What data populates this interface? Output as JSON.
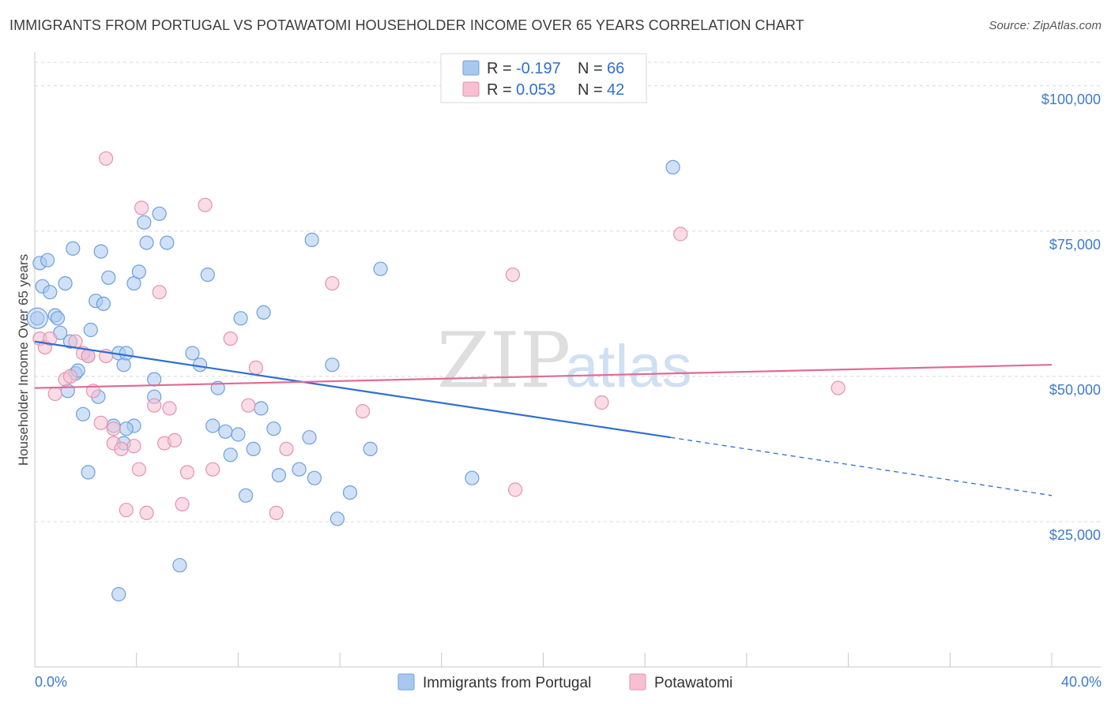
{
  "header": {
    "title": "IMMIGRANTS FROM PORTUGAL VS POTAWATOMI HOUSEHOLDER INCOME OVER 65 YEARS CORRELATION CHART",
    "source": "Source: ZipAtlas.com"
  },
  "watermark": {
    "zip": "ZIP",
    "atlas": "atlas"
  },
  "legend_top": [
    {
      "r_label": "R =",
      "r_value": "-0.197",
      "n_label": "N =",
      "n_value": "66"
    },
    {
      "r_label": "R =",
      "r_value": "0.053",
      "n_label": "N =",
      "n_value": "42"
    }
  ],
  "chart_data": {
    "type": "scatter",
    "title": "IMMIGRANTS FROM PORTUGAL VS POTAWATOMI HOUSEHOLDER INCOME OVER 65 YEARS CORRELATION CHART",
    "xlabel": "",
    "ylabel": "Householder Income Over 65 years",
    "xlim": [
      0,
      40
    ],
    "ylim": [
      0,
      105000
    ],
    "x_tick_labels": [
      "0.0%",
      "40.0%"
    ],
    "y_ticks": [
      25000,
      50000,
      75000,
      100000
    ],
    "y_tick_labels": [
      "$25,000",
      "$50,000",
      "$75,000",
      "$100,000"
    ],
    "grid": true,
    "legend_position": "top-center",
    "colors": {
      "blue_fill": "#a9c8f0",
      "blue_stroke": "#6d9fdc",
      "blue_line": "#2f6fd0",
      "pink_fill": "#f6c0d2",
      "pink_stroke": "#e692b0",
      "pink_line": "#e06b95"
    },
    "series": [
      {
        "name": "Immigrants from Portugal",
        "color": "#a9c8f0",
        "trend": {
          "x0": 0,
          "y0": 56000,
          "x1": 25,
          "y1": 39500,
          "x_dash_end": 40,
          "y_dash_end": 29500
        },
        "points": [
          [
            0.1,
            60000
          ],
          [
            0.2,
            69500
          ],
          [
            0.3,
            65500
          ],
          [
            0.5,
            70000
          ],
          [
            0.6,
            64500
          ],
          [
            0.8,
            60500
          ],
          [
            0.9,
            60000
          ],
          [
            1.0,
            57500
          ],
          [
            1.2,
            66000
          ],
          [
            1.3,
            47500
          ],
          [
            1.5,
            72000
          ],
          [
            1.6,
            50500
          ],
          [
            1.7,
            51000
          ],
          [
            1.9,
            43500
          ],
          [
            2.1,
            53500
          ],
          [
            2.2,
            58000
          ],
          [
            2.4,
            63000
          ],
          [
            2.6,
            71500
          ],
          [
            2.7,
            62500
          ],
          [
            2.9,
            67000
          ],
          [
            2.5,
            46500
          ],
          [
            2.1,
            33500
          ],
          [
            3.1,
            41500
          ],
          [
            3.3,
            54000
          ],
          [
            3.5,
            52000
          ],
          [
            3.6,
            54000
          ],
          [
            3.9,
            41500
          ],
          [
            3.9,
            66000
          ],
          [
            4.1,
            68000
          ],
          [
            4.3,
            76500
          ],
          [
            4.4,
            73000
          ],
          [
            4.7,
            49500
          ],
          [
            4.7,
            46500
          ],
          [
            4.9,
            78000
          ],
          [
            5.2,
            73000
          ],
          [
            5.7,
            17500
          ],
          [
            6.2,
            54000
          ],
          [
            6.5,
            52000
          ],
          [
            6.8,
            67500
          ],
          [
            7.0,
            41500
          ],
          [
            7.2,
            48000
          ],
          [
            7.5,
            40500
          ],
          [
            7.7,
            36500
          ],
          [
            8.0,
            40000
          ],
          [
            8.1,
            60000
          ],
          [
            8.3,
            29500
          ],
          [
            8.6,
            37500
          ],
          [
            8.9,
            44500
          ],
          [
            9.0,
            61000
          ],
          [
            9.4,
            41000
          ],
          [
            9.6,
            33000
          ],
          [
            10.8,
            39500
          ],
          [
            11.0,
            32500
          ],
          [
            11.7,
            52000
          ],
          [
            11.9,
            25500
          ],
          [
            12.4,
            30000
          ],
          [
            13.2,
            37500
          ],
          [
            13.6,
            68500
          ],
          [
            17.2,
            32500
          ],
          [
            25.1,
            86000
          ],
          [
            3.3,
            12500
          ],
          [
            3.5,
            38500
          ],
          [
            1.4,
            56000
          ],
          [
            10.4,
            34000
          ],
          [
            10.9,
            73500
          ],
          [
            3.6,
            41000
          ]
        ]
      },
      {
        "name": "Potawatomi",
        "color": "#f6c0d2",
        "trend": {
          "x0": 0,
          "y0": 48000,
          "x1": 40,
          "y1": 52000
        },
        "points": [
          [
            0.2,
            56500
          ],
          [
            0.4,
            55000
          ],
          [
            0.6,
            56500
          ],
          [
            0.8,
            47000
          ],
          [
            1.2,
            49500
          ],
          [
            1.4,
            50000
          ],
          [
            1.6,
            56000
          ],
          [
            1.9,
            54000
          ],
          [
            2.1,
            53500
          ],
          [
            2.3,
            47500
          ],
          [
            2.6,
            42000
          ],
          [
            2.8,
            53500
          ],
          [
            3.1,
            41000
          ],
          [
            3.1,
            38500
          ],
          [
            3.4,
            37500
          ],
          [
            3.6,
            27000
          ],
          [
            3.9,
            38000
          ],
          [
            4.1,
            34000
          ],
          [
            4.2,
            79000
          ],
          [
            4.4,
            26500
          ],
          [
            4.7,
            45000
          ],
          [
            4.9,
            64500
          ],
          [
            5.1,
            38500
          ],
          [
            5.3,
            44500
          ],
          [
            5.5,
            39000
          ],
          [
            5.8,
            28000
          ],
          [
            6.0,
            33500
          ],
          [
            6.7,
            79500
          ],
          [
            7.0,
            34000
          ],
          [
            7.7,
            56500
          ],
          [
            8.4,
            45000
          ],
          [
            8.7,
            51500
          ],
          [
            9.5,
            26500
          ],
          [
            9.9,
            37500
          ],
          [
            11.7,
            66000
          ],
          [
            12.9,
            44000
          ],
          [
            18.9,
            30500
          ],
          [
            18.8,
            67500
          ],
          [
            22.3,
            45500
          ],
          [
            25.4,
            74500
          ],
          [
            31.6,
            48000
          ],
          [
            2.8,
            87500
          ]
        ]
      }
    ]
  },
  "bottom_legend": [
    {
      "label": "Immigrants from Portugal"
    },
    {
      "label": "Potawatomi"
    }
  ]
}
